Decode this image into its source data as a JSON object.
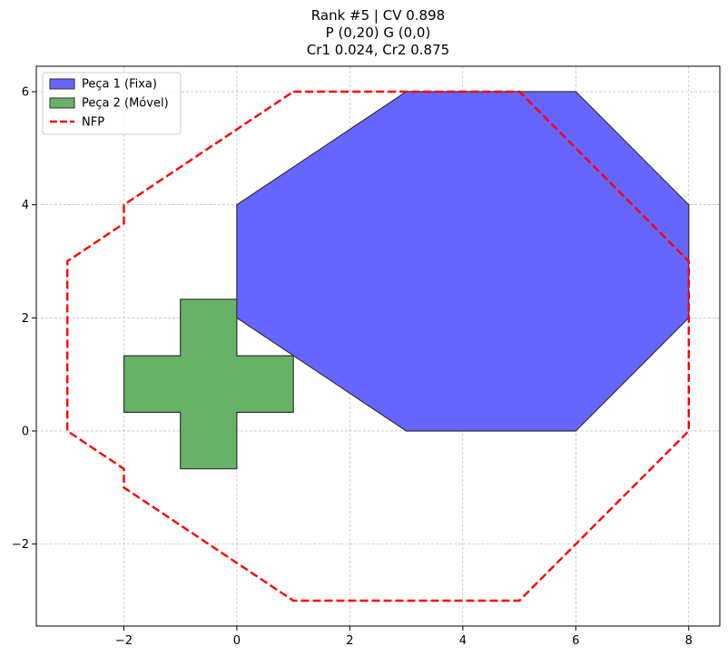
{
  "chart_data": {
    "type": "polygon-plot",
    "title_lines": [
      "Rank #5 | CV 0.898",
      "P (0,20) G (0,0)",
      "Cr1 0.024, Cr2 0.875"
    ],
    "xlabel": "",
    "ylabel": "",
    "xlim": [
      -3.55,
      8.55
    ],
    "ylim": [
      -3.45,
      6.45
    ],
    "xticks": [
      -2,
      0,
      2,
      4,
      6,
      8
    ],
    "yticks": [
      -2,
      0,
      2,
      4,
      6
    ],
    "grid": true,
    "legend_position": "top-left",
    "series": [
      {
        "name": "Peça 1 (Fixa)",
        "kind": "filled-polygon",
        "color": "#6666ff",
        "edge_color": "#333333",
        "points": [
          [
            0,
            2
          ],
          [
            0,
            4
          ],
          [
            3,
            6
          ],
          [
            6,
            6
          ],
          [
            8,
            4
          ],
          [
            8,
            2
          ],
          [
            6,
            0
          ],
          [
            3,
            0
          ]
        ]
      },
      {
        "name": "Peça 2 (Móvel)",
        "kind": "filled-polygon",
        "color": "#66b266",
        "edge_color": "#333333",
        "points": [
          [
            -1,
            2.33
          ],
          [
            0,
            2.33
          ],
          [
            0,
            1.33
          ],
          [
            1,
            1.33
          ],
          [
            1,
            0.33
          ],
          [
            0,
            0.33
          ],
          [
            0,
            -0.67
          ],
          [
            -1,
            -0.67
          ],
          [
            -1,
            0.33
          ],
          [
            -2,
            0.33
          ],
          [
            -2,
            1.33
          ],
          [
            -1,
            1.33
          ]
        ]
      },
      {
        "name": "NFP",
        "kind": "dashed-line",
        "color": "#ff0000",
        "points": [
          [
            1,
            6
          ],
          [
            5,
            6
          ],
          [
            8,
            3
          ],
          [
            8,
            0
          ],
          [
            5,
            -3
          ],
          [
            1,
            -3
          ],
          [
            -2,
            -1
          ],
          [
            -2,
            -0.67
          ],
          [
            -3,
            0
          ],
          [
            -3,
            3
          ],
          [
            -2,
            3.67
          ],
          [
            -2,
            4
          ],
          [
            1,
            6
          ]
        ]
      }
    ]
  }
}
